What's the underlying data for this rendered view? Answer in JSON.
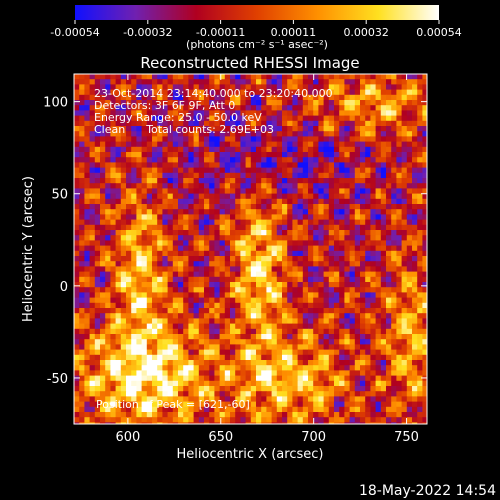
{
  "colorbar": {
    "ticks": [
      "-0.00054",
      "-0.00032",
      "-0.00011",
      "0.00011",
      "0.00032",
      "0.00054"
    ],
    "unit_label": "(photons cm⁻² s⁻¹ asec⁻²)",
    "stops": [
      "#1010ff",
      "#7020b0",
      "#b00020",
      "#e04000",
      "#ff9000",
      "#ffe020",
      "#ffffff"
    ]
  },
  "title": "Reconstructed RHESSI Image",
  "annotations": [
    "23-Oct-2014 23:14:40.000 to 23:20:40.000",
    "Detectors: 3F 6F 9F, Att 0",
    "Energy Range: 25.0 - 50.0 keV",
    "Clean      Total counts: 2.69E+03"
  ],
  "peak_label": "Position of Peak = [621,-60]",
  "footer_timestamp": "18-May-2022 14:54",
  "chart_data": {
    "type": "heatmap",
    "title": "Reconstructed RHESSI Image",
    "xlabel": "Heliocentric X (arcsec)",
    "ylabel": "Heliocentric Y (arcsec)",
    "xlim": [
      571,
      761
    ],
    "ylim": [
      -75,
      115
    ],
    "xticks": [
      600,
      650,
      700,
      750
    ],
    "yticks": [
      -50,
      0,
      50,
      100
    ],
    "zlim": [
      -0.00054,
      0.00054
    ],
    "peak": [
      621,
      -60
    ]
  }
}
